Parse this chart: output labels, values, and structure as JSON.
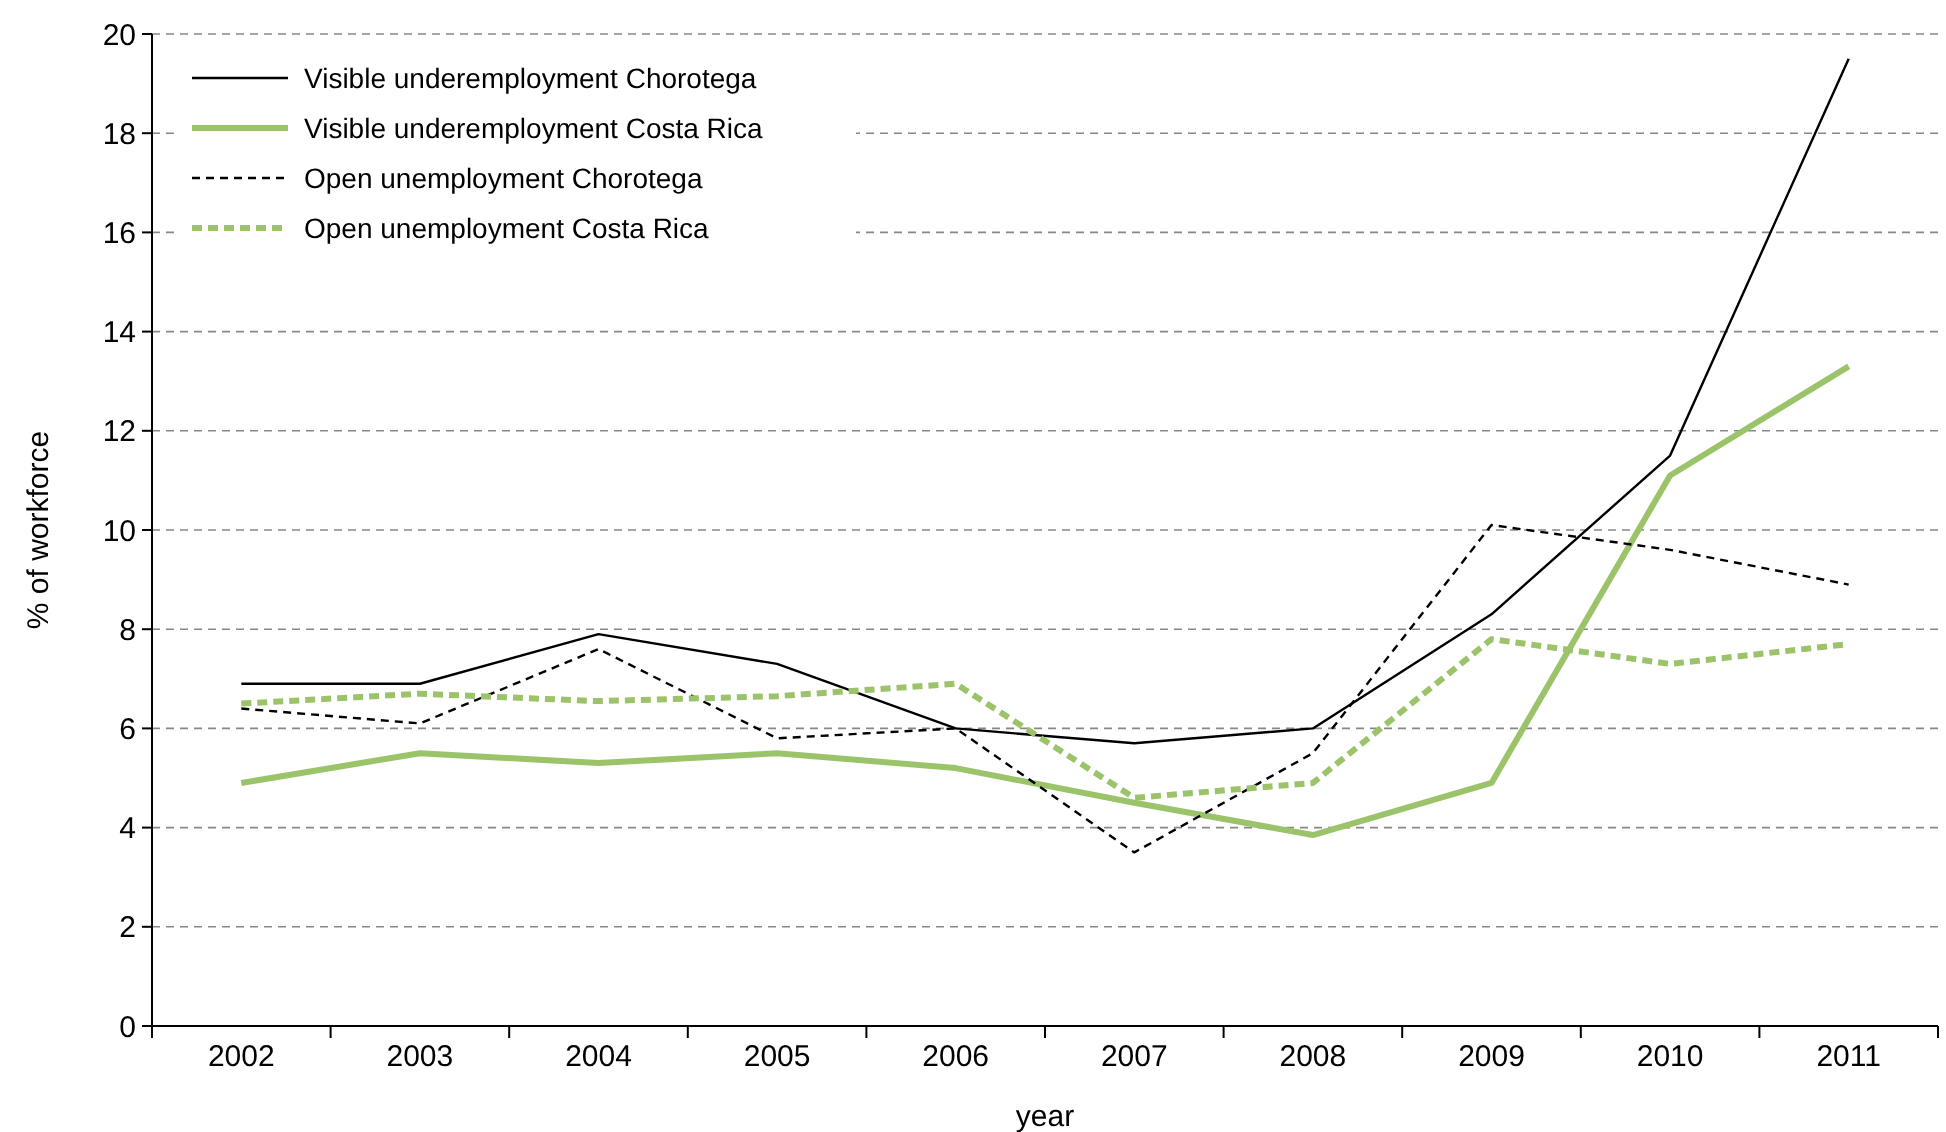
{
  "chart_data": {
    "type": "line",
    "xlabel": "year",
    "ylabel": "% of workforce",
    "categories": [
      "2002",
      "2003",
      "2004",
      "2005",
      "2006",
      "2007",
      "2008",
      "2009",
      "2010",
      "2011"
    ],
    "ylim": [
      0,
      20
    ],
    "yticks": [
      0,
      2,
      4,
      6,
      8,
      10,
      12,
      14,
      16,
      18,
      20
    ],
    "grid": "y",
    "legend": "top left",
    "marker": "none",
    "series": [
      {
        "name": "Visible underemployment Chorotega",
        "color": "#000000",
        "line_style": "solid",
        "values": [
          6.9,
          6.9,
          7.9,
          7.3,
          6.0,
          5.7,
          6.0,
          8.3,
          11.5,
          19.5
        ]
      },
      {
        "name": "Visible underemployment Costa Rica",
        "color": "#9bc46a",
        "line_style": "solid",
        "values": [
          4.9,
          5.5,
          5.3,
          5.5,
          5.2,
          4.5,
          3.85,
          4.9,
          11.1,
          13.3
        ]
      },
      {
        "name": "Open unemployment Chorotega",
        "color": "#000000",
        "line_style": "dashed",
        "values": [
          6.4,
          6.1,
          7.6,
          5.8,
          6.0,
          3.5,
          5.5,
          10.1,
          9.6,
          8.9
        ]
      },
      {
        "name": "Open unemployment Costa Rica",
        "color": "#9bc46a",
        "line_style": "dotted",
        "values": [
          6.5,
          6.7,
          6.55,
          6.65,
          6.9,
          4.6,
          4.9,
          7.8,
          7.3,
          7.7
        ]
      }
    ]
  }
}
